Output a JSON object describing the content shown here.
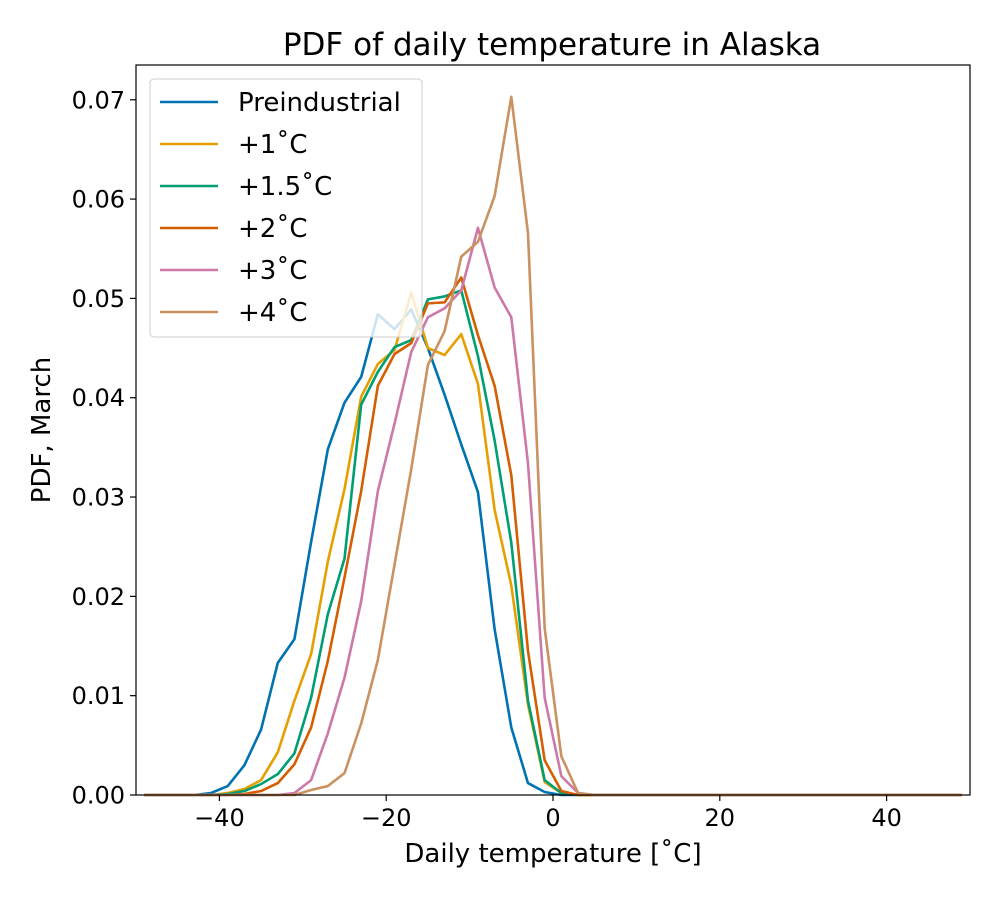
{
  "chart_data": {
    "type": "line",
    "title": "PDF of daily temperature in Alaska",
    "xlabel": "Daily temperature [˚C]",
    "ylabel": "PDF, March",
    "xlim": [
      -50,
      50
    ],
    "ylim": [
      0,
      0.0735
    ],
    "xticks": [
      -40,
      -20,
      0,
      20,
      40
    ],
    "xtick_labels": [
      "−40",
      "−20",
      "0",
      "20",
      "40"
    ],
    "yticks": [
      0,
      0.01,
      0.02,
      0.03,
      0.04,
      0.05,
      0.06,
      0.07
    ],
    "ytick_labels": [
      "0.00",
      "0.01",
      "0.02",
      "0.03",
      "0.04",
      "0.05",
      "0.06",
      "0.07"
    ],
    "grid": false,
    "legend_position": "top-left",
    "x": [
      -49,
      -47,
      -45,
      -43,
      -41,
      -39,
      -37,
      -35,
      -33,
      -31,
      -29,
      -27,
      -25,
      -23,
      -21,
      -19,
      -17,
      -15,
      -13,
      -11,
      -9,
      -7,
      -5,
      -3,
      -1,
      1,
      3,
      5,
      7,
      9,
      11,
      13,
      15,
      17,
      19,
      21,
      23,
      25,
      27,
      29,
      31,
      33,
      35,
      37,
      39,
      41,
      43,
      45,
      47,
      49
    ],
    "series": [
      {
        "name": "Preindustrial",
        "color": "#0072b2",
        "values": [
          0,
          0,
          0,
          0,
          0.0002,
          0.0009,
          0.003,
          0.0066,
          0.0133,
          0.0157,
          0.0255,
          0.0348,
          0.0395,
          0.0421,
          0.0484,
          0.0469,
          0.0489,
          0.045,
          0.0403,
          0.0353,
          0.0305,
          0.0167,
          0.0068,
          0.0012,
          0.0003,
          0,
          0,
          0,
          0,
          0,
          0,
          0,
          0,
          0,
          0,
          0,
          0,
          0,
          0,
          0,
          0,
          0,
          0,
          0,
          0,
          0,
          0,
          0,
          0,
          0
        ]
      },
      {
        "name": "+1˚C",
        "color": "#e69f00",
        "values": [
          0,
          0,
          0,
          0,
          0,
          0.0002,
          0.0006,
          0.0015,
          0.0043,
          0.0095,
          0.0142,
          0.0235,
          0.0308,
          0.0401,
          0.0434,
          0.0448,
          0.0506,
          0.045,
          0.0443,
          0.0464,
          0.0414,
          0.0287,
          0.0211,
          0.0091,
          0.0013,
          0.0002,
          0,
          0,
          0,
          0,
          0,
          0,
          0,
          0,
          0,
          0,
          0,
          0,
          0,
          0,
          0,
          0,
          0,
          0,
          0,
          0,
          0,
          0,
          0,
          0
        ]
      },
      {
        "name": "+1.5˚C",
        "color": "#009e73",
        "values": [
          0,
          0,
          0,
          0,
          0,
          0.0001,
          0.0004,
          0.0011,
          0.0021,
          0.0042,
          0.0098,
          0.0182,
          0.0238,
          0.0393,
          0.0426,
          0.0451,
          0.0458,
          0.0499,
          0.0502,
          0.0508,
          0.0442,
          0.0357,
          0.0254,
          0.0095,
          0.0015,
          0.0002,
          0,
          0,
          0,
          0,
          0,
          0,
          0,
          0,
          0,
          0,
          0,
          0,
          0,
          0,
          0,
          0,
          0,
          0,
          0,
          0,
          0,
          0,
          0,
          0
        ]
      },
      {
        "name": "+2˚C",
        "color": "#d55e00",
        "values": [
          0,
          0,
          0,
          0,
          0,
          0,
          0.0001,
          0.0004,
          0.0012,
          0.0031,
          0.0068,
          0.0135,
          0.0219,
          0.0306,
          0.0412,
          0.0444,
          0.0455,
          0.0495,
          0.0496,
          0.0521,
          0.0463,
          0.0412,
          0.0322,
          0.0145,
          0.0035,
          0.0004,
          0,
          0,
          0,
          0,
          0,
          0,
          0,
          0,
          0,
          0,
          0,
          0,
          0,
          0,
          0,
          0,
          0,
          0,
          0,
          0,
          0,
          0,
          0,
          0
        ]
      },
      {
        "name": "+3˚C",
        "color": "#cc79a7",
        "values": [
          0,
          0,
          0,
          0,
          0,
          0,
          0,
          0,
          0,
          0.0002,
          0.0015,
          0.0062,
          0.0118,
          0.0195,
          0.0306,
          0.0374,
          0.0446,
          0.0481,
          0.049,
          0.0508,
          0.0571,
          0.0511,
          0.0481,
          0.0334,
          0.0098,
          0.0019,
          0.0002,
          0,
          0,
          0,
          0,
          0,
          0,
          0,
          0,
          0,
          0,
          0,
          0,
          0,
          0,
          0,
          0,
          0,
          0,
          0,
          0,
          0,
          0,
          0
        ]
      },
      {
        "name": "+4˚C",
        "color": "#ca9161",
        "values": [
          0,
          0,
          0,
          0,
          0,
          0,
          0,
          0,
          0,
          0,
          0.0005,
          0.0009,
          0.0022,
          0.0072,
          0.0136,
          0.0232,
          0.0328,
          0.0433,
          0.0467,
          0.0542,
          0.0557,
          0.0603,
          0.0703,
          0.0566,
          0.0168,
          0.0039,
          0.0002,
          0,
          0,
          0,
          0,
          0,
          0,
          0,
          0,
          0,
          0,
          0,
          0,
          0,
          0,
          0,
          0,
          0,
          0,
          0,
          0,
          0,
          0,
          0
        ]
      }
    ]
  }
}
